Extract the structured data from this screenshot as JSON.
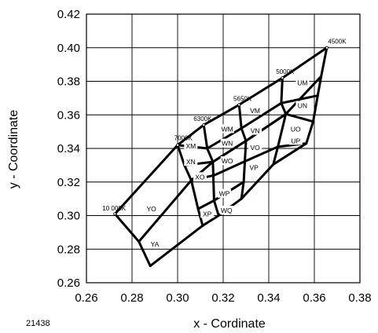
{
  "figure_number": "21438",
  "chart_data": {
    "type": "line",
    "title": "",
    "xlabel": "x - Cordinate",
    "ylabel": "y - Coordinate",
    "xlim": [
      0.26,
      0.38
    ],
    "ylim": [
      0.26,
      0.42
    ],
    "x_ticks": [
      "0.26",
      "0.28",
      "0.30",
      "0.32",
      "0.34",
      "0.36",
      "0.38"
    ],
    "y_ticks": [
      "0.26",
      "0.28",
      "0.30",
      "0.32",
      "0.34",
      "0.36",
      "0.38",
      "0.40",
      "0.42"
    ],
    "grid": true,
    "legend": "none",
    "series": [
      {
        "values": [
          [
            0.2725,
            0.301
          ],
          [
            0.3,
            0.342
          ],
          [
            0.3115,
            0.354
          ],
          [
            0.327,
            0.366
          ],
          [
            0.346,
            0.382
          ],
          [
            0.3655,
            0.4
          ]
        ]
      },
      {
        "values": [
          [
            0.283,
            0.2845
          ],
          [
            0.306,
            0.321
          ],
          [
            0.3155,
            0.332
          ],
          [
            0.33,
            0.3445
          ],
          [
            0.3475,
            0.3605
          ],
          [
            0.363,
            0.383
          ]
        ]
      },
      {
        "values": [
          [
            0.288,
            0.27
          ],
          [
            0.311,
            0.294
          ],
          [
            0.318,
            0.3
          ],
          [
            0.328,
            0.31
          ],
          [
            0.342,
            0.3305
          ],
          [
            0.3565,
            0.343
          ],
          [
            0.3595,
            0.356
          ],
          [
            0.3615,
            0.3715
          ],
          [
            0.363,
            0.383
          ],
          [
            0.3655,
            0.4
          ]
        ]
      },
      {
        "values": [
          [
            0.2725,
            0.301
          ],
          [
            0.283,
            0.2845
          ],
          [
            0.288,
            0.27
          ]
        ]
      },
      {
        "values": [
          [
            0.3,
            0.342
          ],
          [
            0.303,
            0.33
          ],
          [
            0.306,
            0.321
          ],
          [
            0.309,
            0.304
          ],
          [
            0.311,
            0.294
          ]
        ]
      },
      {
        "values": [
          [
            0.3115,
            0.354
          ],
          [
            0.313,
            0.34
          ],
          [
            0.3155,
            0.332
          ],
          [
            0.316,
            0.309
          ],
          [
            0.318,
            0.3
          ]
        ]
      },
      {
        "values": [
          [
            0.327,
            0.366
          ],
          [
            0.328,
            0.352
          ],
          [
            0.33,
            0.3445
          ],
          [
            0.329,
            0.32
          ],
          [
            0.328,
            0.31
          ]
        ]
      },
      {
        "values": [
          [
            0.346,
            0.382
          ],
          [
            0.3455,
            0.367
          ],
          [
            0.3475,
            0.3605
          ],
          [
            0.344,
            0.341
          ],
          [
            0.342,
            0.3305
          ]
        ]
      },
      {
        "values": [
          [
            0.3,
            0.342
          ],
          [
            0.313,
            0.34
          ],
          [
            0.328,
            0.352
          ],
          [
            0.3455,
            0.367
          ],
          [
            0.3615,
            0.3715
          ]
        ]
      },
      {
        "values": [
          [
            0.303,
            0.33
          ],
          [
            0.3155,
            0.332
          ],
          [
            0.33,
            0.3445
          ],
          [
            0.3475,
            0.3605
          ],
          [
            0.3595,
            0.356
          ]
        ]
      },
      {
        "values": [
          [
            0.306,
            0.321
          ],
          [
            0.316,
            0.324
          ],
          [
            0.329,
            0.332
          ],
          [
            0.344,
            0.341
          ],
          [
            0.3565,
            0.343
          ]
        ]
      },
      {
        "values": [
          [
            0.309,
            0.304
          ],
          [
            0.316,
            0.309
          ],
          [
            0.329,
            0.32
          ]
        ]
      }
    ],
    "cct_labels": [
      {
        "text": "4500K",
        "x": 0.366,
        "y": 0.4025
      },
      {
        "text": "5000K",
        "x": 0.3432,
        "y": 0.3845
      },
      {
        "text": "5650K",
        "x": 0.3245,
        "y": 0.3682
      },
      {
        "text": "6300K",
        "x": 0.307,
        "y": 0.3563
      },
      {
        "text": "7000K",
        "x": 0.2985,
        "y": 0.345
      },
      {
        "text": "10 000K",
        "x": 0.267,
        "y": 0.303
      }
    ],
    "bin_labels": [
      {
        "text": "UM",
        "x": 0.3548,
        "y": 0.379
      },
      {
        "text": "UN",
        "x": 0.3548,
        "y": 0.3655
      },
      {
        "text": "UO",
        "x": 0.3518,
        "y": 0.3515
      },
      {
        "text": "UP",
        "x": 0.3518,
        "y": 0.3445
      },
      {
        "text": "VM",
        "x": 0.334,
        "y": 0.3625
      },
      {
        "text": "VN",
        "x": 0.334,
        "y": 0.3505
      },
      {
        "text": "VO",
        "x": 0.334,
        "y": 0.3405
      },
      {
        "text": "VP",
        "x": 0.3335,
        "y": 0.3285
      },
      {
        "text": "WM",
        "x": 0.3218,
        "y": 0.3515
      },
      {
        "text": "WN",
        "x": 0.3218,
        "y": 0.343
      },
      {
        "text": "WO",
        "x": 0.3218,
        "y": 0.3325
      },
      {
        "text": "WP",
        "x": 0.3205,
        "y": 0.313
      },
      {
        "text": "WQ",
        "x": 0.3215,
        "y": 0.303
      },
      {
        "text": "XM",
        "x": 0.3058,
        "y": 0.3415
      },
      {
        "text": "XN",
        "x": 0.3058,
        "y": 0.332
      },
      {
        "text": "XO",
        "x": 0.3098,
        "y": 0.323
      },
      {
        "text": "XP",
        "x": 0.313,
        "y": 0.301
      },
      {
        "text": "YO",
        "x": 0.2885,
        "y": 0.304
      },
      {
        "text": "YA",
        "x": 0.29,
        "y": 0.283
      }
    ]
  }
}
